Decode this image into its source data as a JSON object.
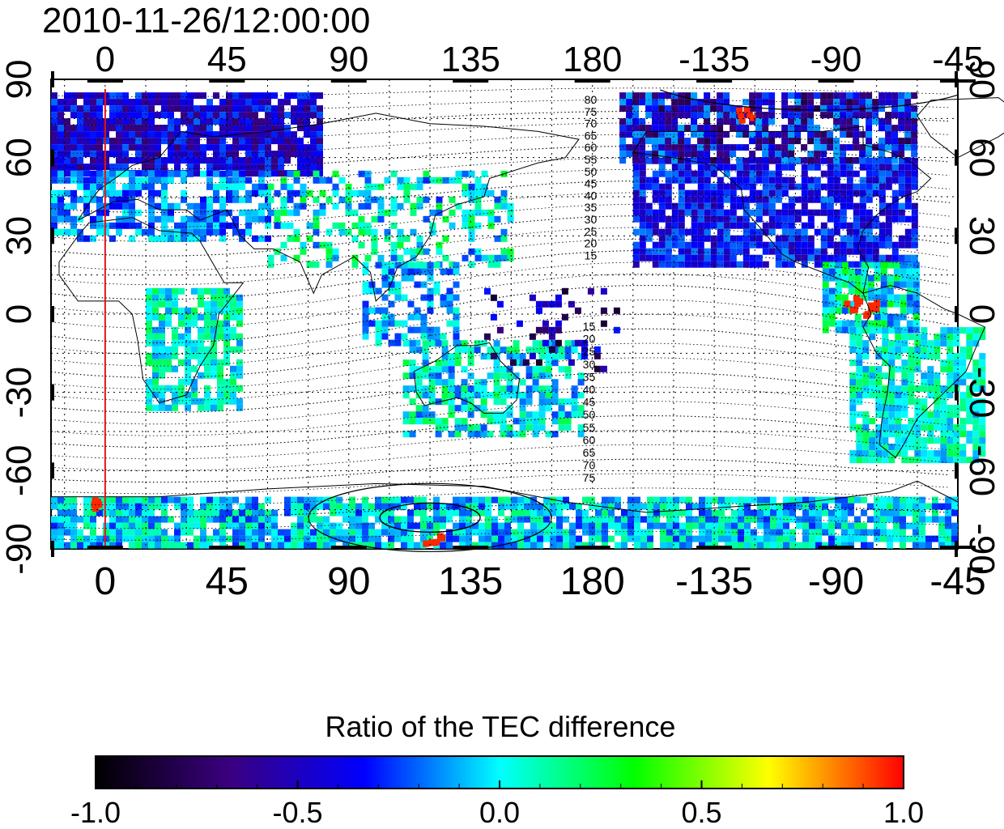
{
  "map": {
    "timestamp": "2010-11-26/12:00:00",
    "lon_ticks": [
      "0",
      "45",
      "90",
      "135",
      "180",
      "-135",
      "-90",
      "-45"
    ],
    "lon_values": [
      0,
      45,
      90,
      135,
      180,
      225,
      270,
      315
    ],
    "lon_range": [
      -20,
      315
    ],
    "lat_ticks": [
      "90",
      "60",
      "30",
      "0",
      "-30",
      "-60",
      "-90"
    ],
    "lat_values": [
      90,
      60,
      30,
      0,
      -30,
      -60,
      -90
    ],
    "lat_range": [
      -90,
      90
    ],
    "grid": "dotted",
    "meridian_marker_lon": 0,
    "meridian_marker_color": "#e0141b",
    "contour_labels_north": [
      "80",
      "75",
      "70",
      "65",
      "60",
      "55",
      "50",
      "45",
      "40",
      "35",
      "30",
      "25",
      "20",
      "15"
    ],
    "contour_labels_south": [
      "15",
      "20",
      "25",
      "30",
      "35",
      "40",
      "45",
      "50",
      "55",
      "60",
      "65",
      "70",
      "75"
    ],
    "contour_label_lon": 180
  },
  "colorbar": {
    "title": "Ratio of the TEC difference",
    "ticks": [
      "-1.0",
      "-0.5",
      "0.0",
      "0.5",
      "1.0"
    ],
    "tick_values": [
      -1.0,
      -0.5,
      0.0,
      0.5,
      1.0
    ],
    "range": [
      -1.0,
      1.0
    ],
    "colormap": [
      "#000000",
      "#3a0080",
      "#0000ff",
      "#00ffff",
      "#00ff00",
      "#ffff00",
      "#ff0000"
    ]
  }
}
